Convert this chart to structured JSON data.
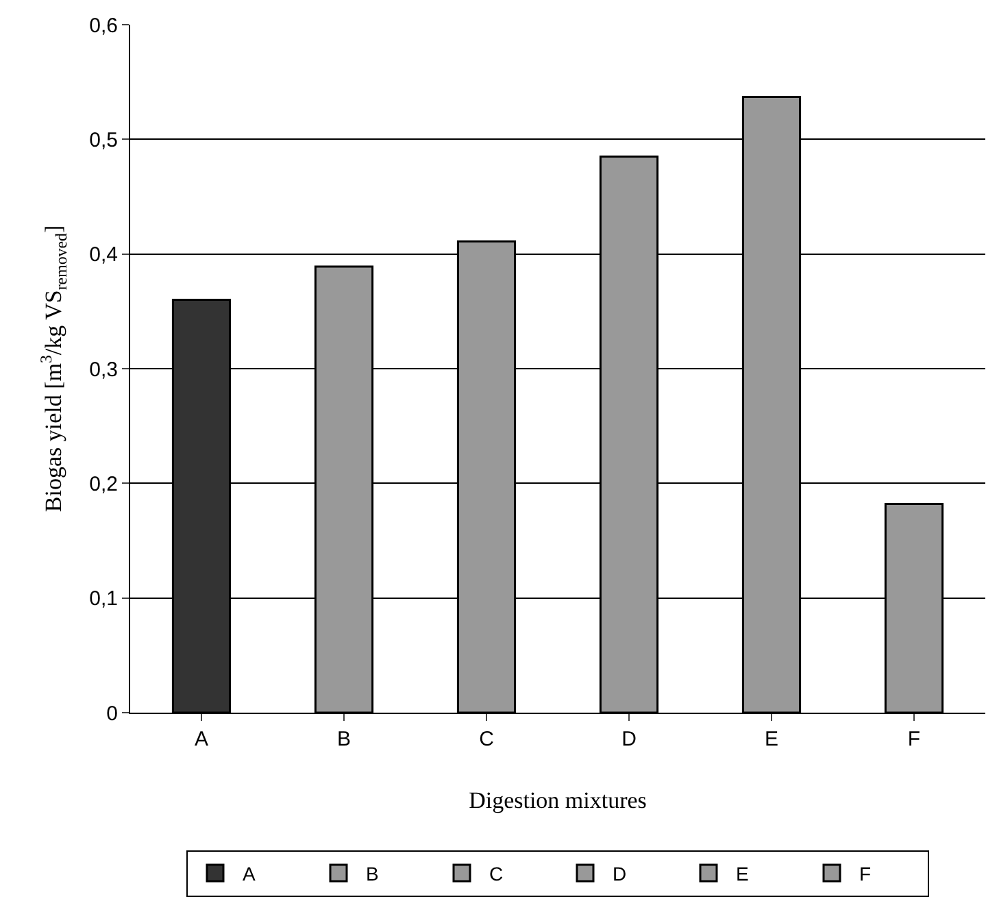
{
  "chart_data": {
    "type": "bar",
    "xlabel": "Digestion mixtures",
    "ylabel": "Biogas yield [m$^{3}$/kg VS$_{removed}$]",
    "categories": [
      "A",
      "B",
      "C",
      "D",
      "E",
      "F"
    ],
    "series": [
      {
        "name": "A",
        "color": "#333333",
        "values": [
          0.36,
          null,
          null,
          null,
          null,
          null
        ]
      },
      {
        "name": "B",
        "color": "#999999",
        "values": [
          null,
          0.389,
          null,
          null,
          null,
          null
        ]
      },
      {
        "name": "C",
        "color": "#999999",
        "values": [
          null,
          null,
          0.411,
          null,
          null,
          null
        ]
      },
      {
        "name": "D",
        "color": "#999999",
        "values": [
          null,
          null,
          null,
          0.485,
          null,
          null
        ]
      },
      {
        "name": "E",
        "color": "#999999",
        "values": [
          null,
          null,
          null,
          null,
          0.537,
          null
        ]
      },
      {
        "name": "F",
        "color": "#999999",
        "values": [
          null,
          null,
          null,
          null,
          null,
          0.182
        ]
      }
    ],
    "ylim": [
      0,
      0.6
    ],
    "yticks": [
      0,
      {
        "value": 0.1,
        "label": "0,1"
      },
      {
        "value": 0.2,
        "label": "0,2"
      },
      {
        "value": 0.3,
        "label": "0,3"
      },
      {
        "value": 0.4,
        "label": "0,4"
      },
      {
        "value": 0.5,
        "label": "0,5"
      },
      {
        "value": 0.6,
        "label": "0,6"
      }
    ],
    "grid": "y",
    "legend": "bottom"
  }
}
